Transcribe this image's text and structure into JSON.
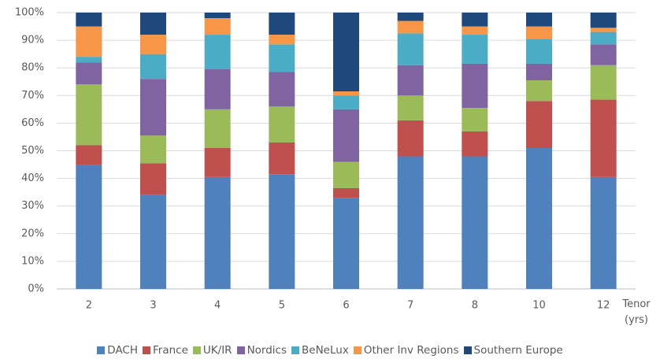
{
  "chart_data": {
    "type": "stacked-bar",
    "x_label": "Tenor (yrs)",
    "categories": [
      "2",
      "3",
      "4",
      "5",
      "6",
      "7",
      "8",
      "10",
      "12"
    ],
    "series": [
      {
        "name": "DACH",
        "color": "#4f81bd",
        "values": [
          45,
          34,
          40.5,
          41.5,
          33,
          48,
          48,
          51,
          40.5
        ]
      },
      {
        "name": "France",
        "color": "#c0504d",
        "values": [
          7,
          11.5,
          10.5,
          11.5,
          3.5,
          13,
          9,
          17,
          28
        ]
      },
      {
        "name": "UK/IR",
        "color": "#9bbb59",
        "values": [
          22,
          10,
          14,
          13,
          9.5,
          9,
          8.5,
          7.5,
          12.5
        ]
      },
      {
        "name": "Nordics",
        "color": "#8064a2",
        "values": [
          8,
          20.5,
          14.5,
          12.5,
          19,
          11,
          16,
          6,
          7.5
        ]
      },
      {
        "name": "BeNeLux",
        "color": "#4bacc6",
        "values": [
          2,
          9,
          12.5,
          10,
          5,
          11.5,
          10.5,
          9,
          4.5
        ]
      },
      {
        "name": "Other Inv Regions",
        "color": "#f79646",
        "values": [
          11,
          7,
          6,
          3.5,
          1.5,
          4.5,
          3,
          4.5,
          1.5
        ]
      },
      {
        "name": "Southern Europe",
        "color": "#1f497d",
        "values": [
          5,
          8,
          2,
          8,
          28.5,
          3,
          5,
          5,
          5.5
        ]
      }
    ],
    "ylim": [
      0,
      100
    ],
    "yticks": [
      {
        "value": 0,
        "label": "0%"
      },
      {
        "value": 10,
        "label": "10%"
      },
      {
        "value": 20,
        "label": "20%"
      },
      {
        "value": 30,
        "label": "30%"
      },
      {
        "value": 40,
        "label": "40%"
      },
      {
        "value": 50,
        "label": "50%"
      },
      {
        "value": 60,
        "label": "60%"
      },
      {
        "value": 70,
        "label": "70%"
      },
      {
        "value": 80,
        "label": "80%"
      },
      {
        "value": 90,
        "label": "90%"
      },
      {
        "value": 100,
        "label": "100%"
      }
    ],
    "grid": true,
    "legend": "bottom"
  }
}
